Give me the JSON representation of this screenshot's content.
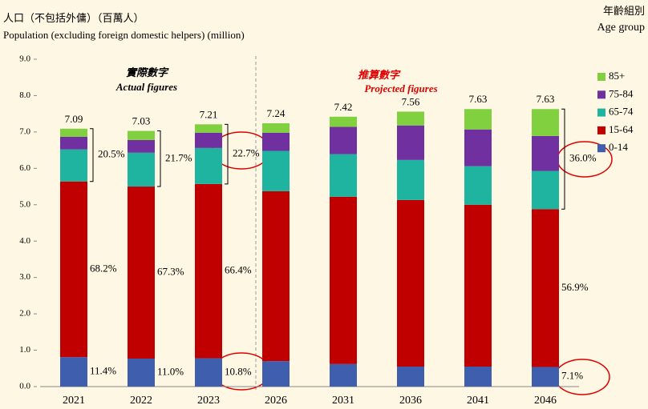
{
  "chart_data": {
    "type": "stacked_bar",
    "title": "人口（不包括外傭）（百萬人）",
    "subtitle": "Population (excluding foreign domestic helpers) (million)",
    "legend_title": "年齡組別",
    "legend_subtitle": "Age group",
    "legend_position": "right",
    "categories": [
      "2021",
      "2022",
      "2023",
      "2026",
      "2031",
      "2036",
      "2041",
      "2046"
    ],
    "series": [
      {
        "name": "0-14",
        "color": "#3f5fae",
        "values": [
          0.81,
          0.77,
          0.78,
          0.7,
          0.62,
          0.55,
          0.55,
          0.54
        ],
        "share_labels": [
          "11.4%",
          "11.0%",
          "10.8%",
          null,
          null,
          null,
          null,
          "7.1%"
        ]
      },
      {
        "name": "15-64",
        "color": "#c00000",
        "values": [
          4.83,
          4.73,
          4.79,
          4.67,
          4.6,
          4.58,
          4.45,
          4.34
        ],
        "share_labels": [
          "68.2%",
          "67.3%",
          "66.4%",
          null,
          null,
          null,
          null,
          "56.9%"
        ]
      },
      {
        "name": "65-74",
        "color": "#1fb4a0",
        "values": [
          0.88,
          0.93,
          0.99,
          1.11,
          1.17,
          1.1,
          1.06,
          1.05
        ]
      },
      {
        "name": "75-84",
        "color": "#7030a0",
        "values": [
          0.35,
          0.35,
          0.42,
          0.5,
          0.75,
          0.95,
          1.01,
          0.96
        ]
      },
      {
        "name": "85+",
        "color": "#80d040",
        "values": [
          0.22,
          0.25,
          0.23,
          0.26,
          0.28,
          0.38,
          0.56,
          0.74
        ]
      }
    ],
    "totals": [
      7.09,
      7.03,
      7.21,
      7.24,
      7.42,
      7.56,
      7.63,
      7.63
    ],
    "aged_share_labels": [
      "20.5%",
      "21.7%",
      "22.7%",
      null,
      null,
      null,
      null,
      "36.0%"
    ],
    "actual_label": "實際數字",
    "actual_label_en": "Actual figures",
    "projected_label": "推算數字",
    "projected_label_en": "Projected figures",
    "ylim": [
      0,
      9
    ],
    "yticks": [
      {
        "value": 0,
        "label": "0.0"
      },
      {
        "value": 1,
        "label": "1.0"
      },
      {
        "value": 2,
        "label": "2.0"
      },
      {
        "value": 3,
        "label": "3.0"
      },
      {
        "value": 4,
        "label": "4.0"
      },
      {
        "value": 5,
        "label": "5.0"
      },
      {
        "value": 6,
        "label": "6.0"
      },
      {
        "value": 7,
        "label": "7.0"
      },
      {
        "value": 8,
        "label": "8.0"
      },
      {
        "value": 9,
        "label": "9.0"
      }
    ]
  }
}
